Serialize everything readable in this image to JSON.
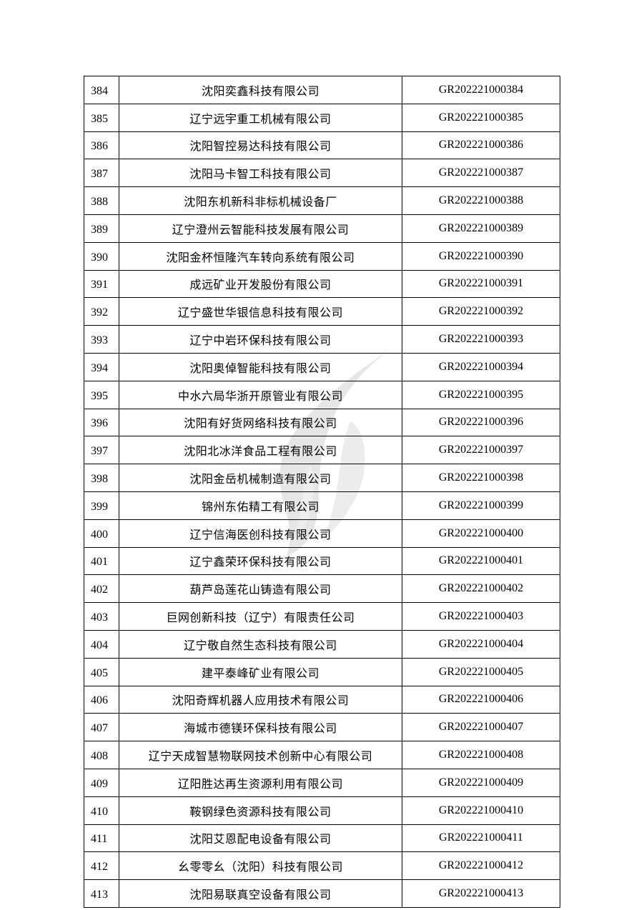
{
  "rows": [
    {
      "no": "384",
      "name": "沈阳奕鑫科技有限公司",
      "code": "GR202221000384"
    },
    {
      "no": "385",
      "name": "辽宁远宇重工机械有限公司",
      "code": "GR202221000385"
    },
    {
      "no": "386",
      "name": "沈阳智控易达科技有限公司",
      "code": "GR202221000386"
    },
    {
      "no": "387",
      "name": "沈阳马卡智工科技有限公司",
      "code": "GR202221000387"
    },
    {
      "no": "388",
      "name": "沈阳东机新科非标机械设备厂",
      "code": "GR202221000388"
    },
    {
      "no": "389",
      "name": "辽宁澄州云智能科技发展有限公司",
      "code": "GR202221000389"
    },
    {
      "no": "390",
      "name": "沈阳金杯恒隆汽车转向系统有限公司",
      "code": "GR202221000390"
    },
    {
      "no": "391",
      "name": "成远矿业开发股份有限公司",
      "code": "GR202221000391"
    },
    {
      "no": "392",
      "name": "辽宁盛世华银信息科技有限公司",
      "code": "GR202221000392"
    },
    {
      "no": "393",
      "name": "辽宁中岩环保科技有限公司",
      "code": "GR202221000393"
    },
    {
      "no": "394",
      "name": "沈阳奥倬智能科技有限公司",
      "code": "GR202221000394"
    },
    {
      "no": "395",
      "name": "中水六局华浙开原管业有限公司",
      "code": "GR202221000395"
    },
    {
      "no": "396",
      "name": "沈阳有好货网络科技有限公司",
      "code": "GR202221000396"
    },
    {
      "no": "397",
      "name": "沈阳北冰洋食品工程有限公司",
      "code": "GR202221000397"
    },
    {
      "no": "398",
      "name": "沈阳金岳机械制造有限公司",
      "code": "GR202221000398"
    },
    {
      "no": "399",
      "name": "锦州东佑精工有限公司",
      "code": "GR202221000399"
    },
    {
      "no": "400",
      "name": "辽宁信海医创科技有限公司",
      "code": "GR202221000400"
    },
    {
      "no": "401",
      "name": "辽宁鑫荣环保科技有限公司",
      "code": "GR202221000401"
    },
    {
      "no": "402",
      "name": "葫芦岛莲花山铸造有限公司",
      "code": "GR202221000402"
    },
    {
      "no": "403",
      "name": "巨网创新科技（辽宁）有限责任公司",
      "code": "GR202221000403"
    },
    {
      "no": "404",
      "name": "辽宁敬自然生态科技有限公司",
      "code": "GR202221000404"
    },
    {
      "no": "405",
      "name": "建平泰峰矿业有限公司",
      "code": "GR202221000405"
    },
    {
      "no": "406",
      "name": "沈阳奇辉机器人应用技术有限公司",
      "code": "GR202221000406"
    },
    {
      "no": "407",
      "name": "海城市德镁环保科技有限公司",
      "code": "GR202221000407"
    },
    {
      "no": "408",
      "name": "辽宁天成智慧物联网技术创新中心有限公司",
      "code": "GR202221000408"
    },
    {
      "no": "409",
      "name": "辽阳胜达再生资源利用有限公司",
      "code": "GR202221000409"
    },
    {
      "no": "410",
      "name": "鞍钢绿色资源科技有限公司",
      "code": "GR202221000410"
    },
    {
      "no": "411",
      "name": "沈阳艾恩配电设备有限公司",
      "code": "GR202221000411"
    },
    {
      "no": "412",
      "name": "幺零零幺（沈阳）科技有限公司",
      "code": "GR202221000412"
    },
    {
      "no": "413",
      "name": "沈阳易联真空设备有限公司",
      "code": "GR202221000413"
    }
  ],
  "watermark": {
    "icon": "flame-logo-watermark",
    "color": "#e4e4e4"
  }
}
